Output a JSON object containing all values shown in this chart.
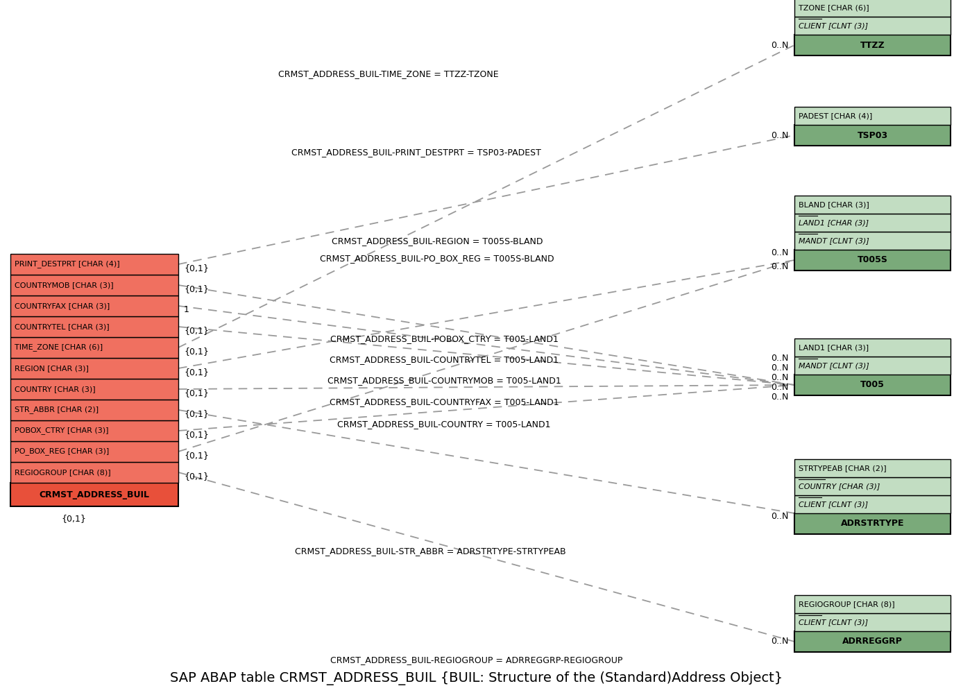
{
  "title": "SAP ABAP table CRMST_ADDRESS_BUIL {BUIL: Structure of the (Standard)Address Object}",
  "bg_color": "#ffffff",
  "main_table": {
    "name": "CRMST_ADDRESS_BUIL",
    "fields": [
      "REGIOGROUP [CHAR (8)]",
      "PO_BOX_REG [CHAR (3)]",
      "POBOX_CTRY [CHAR (3)]",
      "STR_ABBR [CHAR (2)]",
      "COUNTRY [CHAR (3)]",
      "REGION [CHAR (3)]",
      "TIME_ZONE [CHAR (6)]",
      "COUNTRYTEL [CHAR (3)]",
      "COUNTRYFAX [CHAR (3)]",
      "COUNTRYMOB [CHAR (3)]",
      "PRINT_DESTPRT [CHAR (4)]"
    ],
    "key_fields": [],
    "header_color": "#e8503a",
    "row_color": "#f07060"
  },
  "related_tables": [
    {
      "name": "ADRREGGRP",
      "fields": [
        "CLIENT [CLNT (3)]",
        "REGIOGROUP [CHAR (8)]"
      ],
      "key_fields": [
        "CLIENT [CLNT (3)]"
      ],
      "header_color": "#7aaa7a",
      "row_color": "#c2ddc2",
      "relation_label": "CRMST_ADDRESS_BUIL-REGIOGROUP = ADRREGGRP-REGIOGROUP",
      "from_field_idx": 0,
      "card_left": "{0,1}",
      "card_right": "0..N"
    },
    {
      "name": "ADRSTRTYPE",
      "fields": [
        "CLIENT [CLNT (3)]",
        "COUNTRY [CHAR (3)]",
        "STRTYPEAB [CHAR (2)]"
      ],
      "key_fields": [
        "CLIENT [CLNT (3)]",
        "COUNTRY [CHAR (3)]"
      ],
      "header_color": "#7aaa7a",
      "row_color": "#c2ddc2",
      "relation_label": "CRMST_ADDRESS_BUIL-STR_ABBR = ADRSTRTYPE-STRTYPEAB",
      "from_field_idx": 3,
      "card_left": "{0,1}",
      "card_right": "0..N"
    },
    {
      "name": "T005",
      "fields": [
        "MANDT [CLNT (3)]",
        "LAND1 [CHAR (3)]"
      ],
      "key_fields": [
        "MANDT [CLNT (3)]"
      ],
      "header_color": "#7aaa7a",
      "row_color": "#c2ddc2",
      "relations": [
        {
          "label": "CRMST_ADDRESS_BUIL-COUNTRY = T005-LAND1",
          "from_field_idx": 4,
          "card_left": "{0,1}",
          "card_right": "0..N"
        },
        {
          "label": "CRMST_ADDRESS_BUIL-COUNTRYFAX = T005-LAND1",
          "from_field_idx": 8,
          "card_left": "1",
          "card_right": "0..N"
        },
        {
          "label": "CRMST_ADDRESS_BUIL-COUNTRYMOB = T005-LAND1",
          "from_field_idx": 9,
          "card_left": "{0,1}",
          "card_right": "0..N"
        },
        {
          "label": "CRMST_ADDRESS_BUIL-COUNTRYTEL = T005-LAND1",
          "from_field_idx": 7,
          "card_left": "{0,1}",
          "card_right": "0..N"
        },
        {
          "label": "CRMST_ADDRESS_BUIL-POBOX_CTRY = T005-LAND1",
          "from_field_idx": 2,
          "card_left": "{0,1}",
          "card_right": "0..N"
        }
      ]
    },
    {
      "name": "T005S",
      "fields": [
        "MANDT [CLNT (3)]",
        "LAND1 [CHAR (3)]",
        "BLAND [CHAR (3)]"
      ],
      "key_fields": [
        "MANDT [CLNT (3)]",
        "LAND1 [CHAR (3)]"
      ],
      "header_color": "#7aaa7a",
      "row_color": "#c2ddc2",
      "relations": [
        {
          "label": "CRMST_ADDRESS_BUIL-PO_BOX_REG = T005S-BLAND",
          "from_field_idx": 1,
          "card_left": "{0,1}",
          "card_right": "0..N"
        },
        {
          "label": "CRMST_ADDRESS_BUIL-REGION = T005S-BLAND",
          "from_field_idx": 5,
          "card_left": "{0,1}",
          "card_right": "0..N"
        }
      ]
    },
    {
      "name": "TSP03",
      "fields": [
        "PADEST [CHAR (4)]"
      ],
      "key_fields": [],
      "header_color": "#7aaa7a",
      "row_color": "#c2ddc2",
      "relation_label": "CRMST_ADDRESS_BUIL-PRINT_DESTPRT = TSP03-PADEST",
      "from_field_idx": 10,
      "card_left": "{0,1}",
      "card_right": "0..N"
    },
    {
      "name": "TTZZ",
      "fields": [
        "CLIENT [CLNT (3)]",
        "TZONE [CHAR (6)]"
      ],
      "key_fields": [
        "CLIENT [CLNT (3)]"
      ],
      "header_color": "#7aaa7a",
      "row_color": "#c2ddc2",
      "relation_label": "CRMST_ADDRESS_BUIL-TIME_ZONE = TTZZ-TZONE",
      "from_field_idx": 6,
      "card_left": "{0,1}",
      "card_right": "0..N"
    }
  ],
  "connection_labels": {
    "ADRREGGRP": "CRMST_ADDRESS_BUIL-REGIOGROUP = ADRREGGRP-REGIOGROUP",
    "ADRSTRTYPE": "CRMST_ADDRESS_BUIL-STR_ABBR = ADRSTRTYPE-STRTYPEAB",
    "TSP03": "CRMST_ADDRESS_BUIL-PRINT_DESTPRT = TSP03-PADEST",
    "TTZZ": "CRMST_ADDRESS_BUIL-TIME_ZONE = TTZZ-TZONE"
  }
}
